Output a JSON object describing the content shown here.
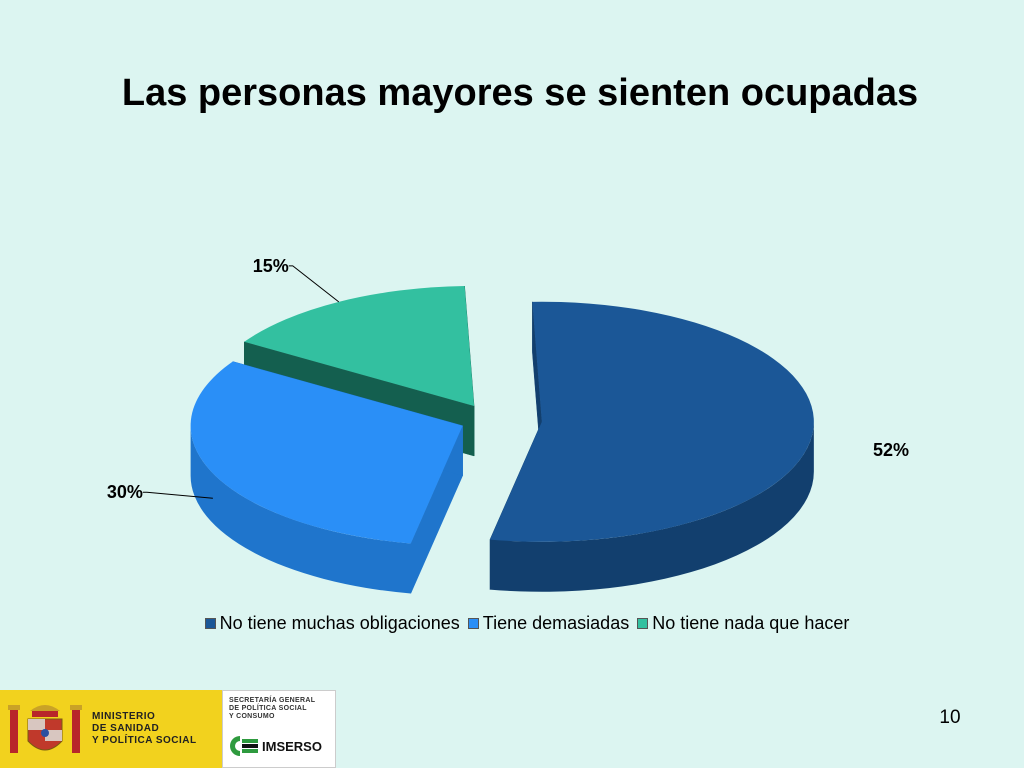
{
  "slide": {
    "title": "Las personas mayores se sienten ocupadas",
    "page_number": "10"
  },
  "footer": {
    "ministry_lines": [
      "MINISTERIO",
      "DE SANIDAD",
      "Y POLÍTICA SOCIAL"
    ],
    "secretaria_lines": [
      "SECRETARÍA GENERAL",
      "DE POLÍTICA SOCIAL",
      "Y CONSUMO"
    ],
    "imserso_name": "IMSERSO"
  },
  "chart_data": {
    "type": "pie",
    "title": "Las personas mayores se sienten ocupadas",
    "categories": [
      "No tiene muchas obligaciones",
      "Tiene demasiadas",
      "No tiene nada que hacer"
    ],
    "values": [
      52,
      30,
      15
    ],
    "data_labels": [
      "52%",
      "30%",
      "15%"
    ],
    "colors": [
      "#1b5797",
      "#2a8ff7",
      "#33c0a0"
    ],
    "side_colors": [
      "#123f6e",
      "#1f75cc",
      "#145f4f"
    ],
    "exploded": true,
    "style": "3d",
    "legend_position": "bottom"
  }
}
